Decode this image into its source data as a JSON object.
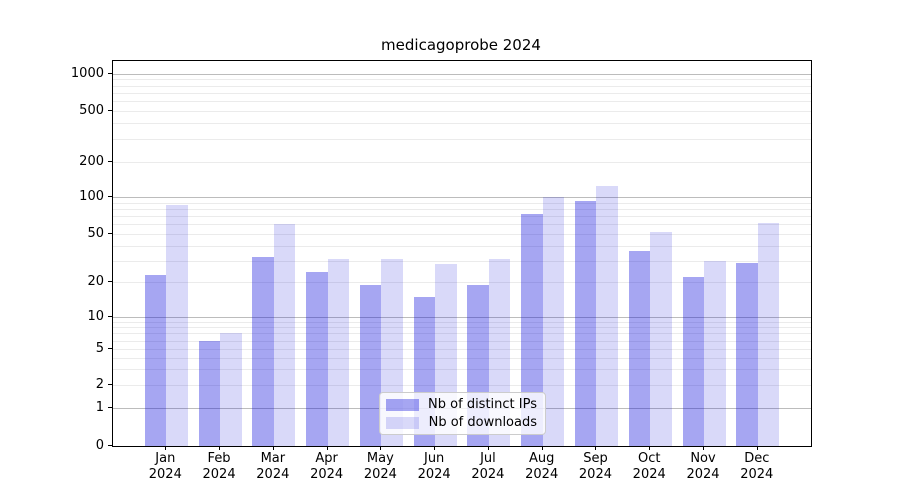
{
  "title": "medicagoprobe 2024",
  "chart_data": {
    "type": "bar",
    "title": "medicagoprobe 2024",
    "categories": [
      "Jan 2024",
      "Feb 2024",
      "Mar 2024",
      "Apr 2024",
      "May 2024",
      "Jun 2024",
      "Jul 2024",
      "Aug 2024",
      "Sep 2024",
      "Oct 2024",
      "Nov 2024",
      "Dec 2024"
    ],
    "series": [
      {
        "name": "Nb of distinct IPs",
        "color": "#a5a5f1",
        "values": [
          23,
          6,
          32,
          24,
          19,
          15,
          19,
          73,
          93,
          36,
          22,
          29
        ]
      },
      {
        "name": "Nb of downloads",
        "color": "#d9d9f9",
        "values": [
          86,
          7,
          60,
          31,
          31,
          28,
          31,
          100,
          125,
          52,
          30,
          62
        ]
      }
    ],
    "yscale": "symlog",
    "yticks": [
      0,
      1,
      2,
      5,
      10,
      20,
      50,
      100,
      200,
      500,
      1000
    ],
    "ylim": [
      0,
      1300
    ],
    "grid": true,
    "legend_position": "lower center"
  }
}
